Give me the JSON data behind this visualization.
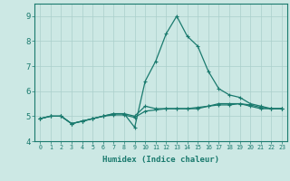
{
  "xlabel": "Humidex (Indice chaleur)",
  "x_values": [
    0,
    1,
    2,
    3,
    4,
    5,
    6,
    7,
    8,
    9,
    10,
    11,
    12,
    13,
    14,
    15,
    16,
    17,
    18,
    19,
    20,
    21,
    22,
    23
  ],
  "line1": [
    4.9,
    5.0,
    5.0,
    4.7,
    4.8,
    4.9,
    5.0,
    5.1,
    5.1,
    5.0,
    5.4,
    5.3,
    5.3,
    5.3,
    5.3,
    5.3,
    5.4,
    5.5,
    5.5,
    5.5,
    5.4,
    5.3,
    5.3,
    5.3
  ],
  "line2": [
    4.9,
    5.0,
    5.0,
    4.7,
    4.8,
    4.9,
    5.0,
    5.1,
    5.1,
    4.55,
    6.4,
    7.2,
    8.3,
    9.0,
    8.2,
    7.8,
    6.8,
    6.1,
    5.85,
    5.75,
    5.5,
    5.4,
    5.3,
    5.3
  ],
  "line3": [
    4.9,
    5.0,
    5.0,
    4.7,
    4.8,
    4.9,
    5.0,
    5.05,
    5.05,
    4.95,
    5.2,
    5.25,
    5.3,
    5.3,
    5.3,
    5.35,
    5.4,
    5.45,
    5.45,
    5.5,
    5.45,
    5.35,
    5.3,
    5.3
  ],
  "line_color": "#1a7a6e",
  "bg_color": "#cce8e4",
  "grid_color": "#aacfcb",
  "ylim": [
    4.0,
    9.5
  ],
  "xlim": [
    -0.5,
    23.5
  ],
  "yticks": [
    4,
    5,
    6,
    7,
    8,
    9
  ],
  "xticks": [
    0,
    1,
    2,
    3,
    4,
    5,
    6,
    7,
    8,
    9,
    10,
    11,
    12,
    13,
    14,
    15,
    16,
    17,
    18,
    19,
    20,
    21,
    22,
    23
  ]
}
